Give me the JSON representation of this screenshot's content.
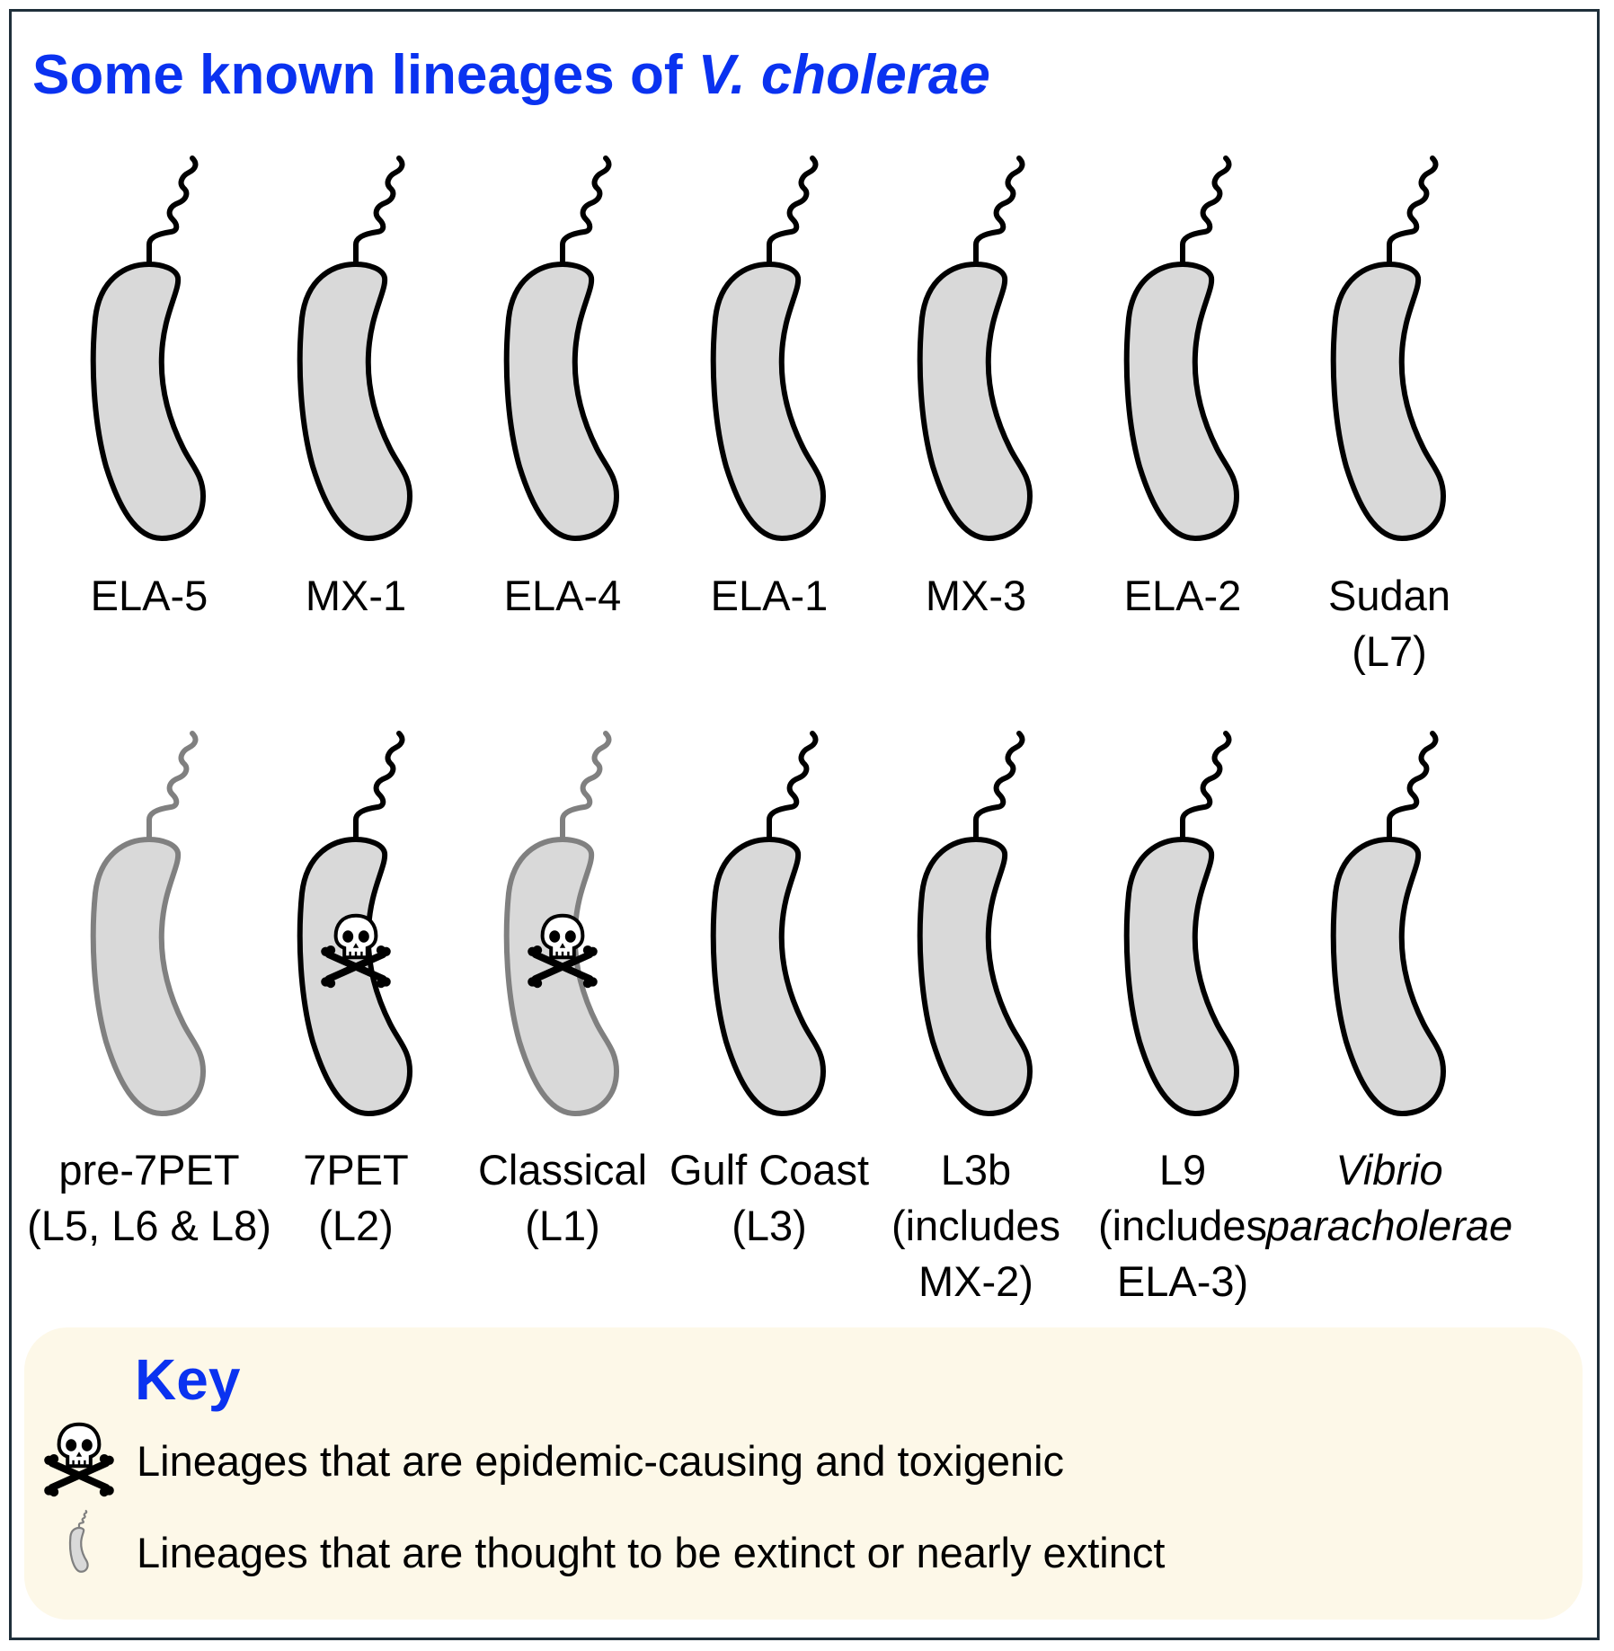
{
  "title": {
    "main": "Some known lineages of ",
    "italic": "V. cholerae"
  },
  "colors": {
    "title": "#0a32f0",
    "cell_fill": "#d9d9d9",
    "outline_normal": "#000000",
    "outline_extinct": "#808080",
    "key_background": "#fdf8e8",
    "frame": "#1f2f3a"
  },
  "rows": [
    {
      "cells": [
        {
          "name": "elA5",
          "label_lines": [
            "ELA-5"
          ],
          "toxigenic": false,
          "extinct": false,
          "italic": false
        },
        {
          "name": "mx1",
          "label_lines": [
            "MX-1"
          ],
          "toxigenic": false,
          "extinct": false,
          "italic": false
        },
        {
          "name": "ela4",
          "label_lines": [
            "ELA-4"
          ],
          "toxigenic": false,
          "extinct": false,
          "italic": false
        },
        {
          "name": "ela1",
          "label_lines": [
            "ELA-1"
          ],
          "toxigenic": false,
          "extinct": false,
          "italic": false
        },
        {
          "name": "mx3",
          "label_lines": [
            "MX-3"
          ],
          "toxigenic": false,
          "extinct": false,
          "italic": false
        },
        {
          "name": "ela2",
          "label_lines": [
            "ELA-2"
          ],
          "toxigenic": false,
          "extinct": false,
          "italic": false
        },
        {
          "name": "sudan",
          "label_lines": [
            "Sudan",
            "(L7)"
          ],
          "toxigenic": false,
          "extinct": false,
          "italic": false
        }
      ]
    },
    {
      "cells": [
        {
          "name": "pre-7pet",
          "label_lines": [
            "pre-7PET",
            "(L5, L6 & L8)"
          ],
          "toxigenic": false,
          "extinct": true,
          "italic": false
        },
        {
          "name": "7pet",
          "label_lines": [
            "7PET",
            "(L2)"
          ],
          "toxigenic": true,
          "extinct": false,
          "italic": false
        },
        {
          "name": "classical",
          "label_lines": [
            "Classical",
            "(L1)"
          ],
          "toxigenic": true,
          "extinct": true,
          "italic": false
        },
        {
          "name": "gulf-coast",
          "label_lines": [
            "Gulf Coast",
            "(L3)"
          ],
          "toxigenic": false,
          "extinct": false,
          "italic": false
        },
        {
          "name": "l3b",
          "label_lines": [
            "L3b",
            "(includes",
            "MX-2)"
          ],
          "toxigenic": false,
          "extinct": false,
          "italic": false
        },
        {
          "name": "l9",
          "label_lines": [
            "L9",
            "(includes",
            "ELA-3)"
          ],
          "toxigenic": false,
          "extinct": false,
          "italic": false
        },
        {
          "name": "vibrio-paracholerae",
          "label_lines": [
            "Vibrio",
            "paracholerae"
          ],
          "toxigenic": false,
          "extinct": false,
          "italic": true
        }
      ]
    }
  ],
  "key": {
    "title": "Key",
    "items": [
      {
        "icon": "skull-crossbones-icon",
        "text": "Lineages that are epidemic-causing and toxigenic"
      },
      {
        "icon": "extinct-bacterium-icon",
        "text": "Lineages that are thought to be extinct or nearly extinct"
      }
    ]
  }
}
